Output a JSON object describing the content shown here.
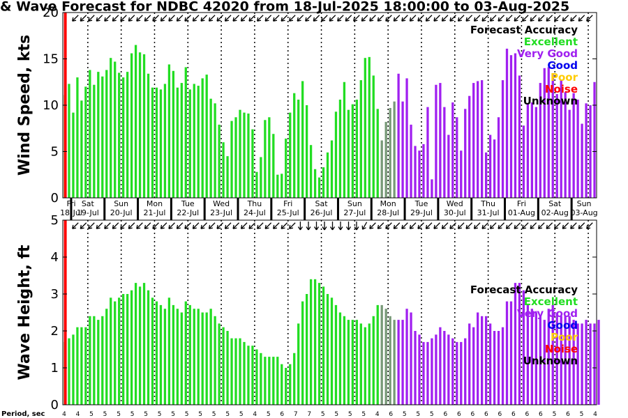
{
  "chart_data": {
    "type": "bar",
    "title": "& Wave Forecast for NDBC 42020 from 18-Jul-2025 18:00:00 to 03-Aug-2025",
    "days": [
      {
        "day": "Fri",
        "date": "18-Jul"
      },
      {
        "day": "Sat",
        "date": "19-Jul"
      },
      {
        "day": "Sun",
        "date": "20-Jul"
      },
      {
        "day": "Mon",
        "date": "21-Jul"
      },
      {
        "day": "Tue",
        "date": "22-Jul"
      },
      {
        "day": "Wed",
        "date": "23-Jul"
      },
      {
        "day": "Thu",
        "date": "24-Jul"
      },
      {
        "day": "Fri",
        "date": "25-Jul"
      },
      {
        "day": "Sat",
        "date": "26-Jul"
      },
      {
        "day": "Sun",
        "date": "27-Jul"
      },
      {
        "day": "Mon",
        "date": "28-Jul"
      },
      {
        "day": "Tue",
        "date": "29-Jul"
      },
      {
        "day": "Wed",
        "date": "30-Jul"
      },
      {
        "day": "Thu",
        "date": "31-Jul"
      },
      {
        "day": "Fri",
        "date": "01-Aug"
      },
      {
        "day": "Sat",
        "date": "02-Aug"
      },
      {
        "day": "Sun",
        "date": "03-Aug"
      }
    ],
    "legend": {
      "title": "Forecast Accuracy",
      "entries": [
        {
          "label": "Excellent",
          "color": "#22dd22"
        },
        {
          "label": "Very Good",
          "color": "#a020f0"
        },
        {
          "label": "Good",
          "color": "#0000ee"
        },
        {
          "label": "Poor",
          "color": "#ffcc00"
        },
        {
          "label": "Noise",
          "color": "#ff0000"
        },
        {
          "label": "Unknown",
          "color": "#000000"
        }
      ],
      "position": "top-right"
    },
    "series_colors": {
      "excellent": "#22dd22",
      "transition": "#779977",
      "very_good": "#a020f0",
      "now_line": "#ff0000"
    },
    "color_blocks": [
      {
        "start": 0,
        "end": 75,
        "class": "excellent"
      },
      {
        "start": 76,
        "end": 79,
        "class": "transition"
      },
      {
        "start": 80,
        "end": 128,
        "class": "very_good"
      }
    ],
    "now_line_hour": 1.8,
    "panels": [
      {
        "ylabel": "Wind Speed, kts",
        "ylim": [
          0,
          20
        ],
        "yticks": [
          0,
          5,
          10,
          15,
          20
        ],
        "values": [
          11.1,
          12.3,
          9.2,
          13.0,
          10.5,
          12.0,
          13.8,
          12.2,
          13.6,
          13.1,
          13.8,
          15.1,
          14.7,
          13.5,
          13.0,
          13.6,
          15.6,
          16.5,
          15.7,
          15.5,
          13.4,
          11.9,
          11.9,
          11.7,
          12.3,
          14.4,
          13.7,
          11.9,
          12.4,
          14.1,
          11.7,
          12.3,
          12.1,
          12.9,
          13.3,
          10.7,
          10.2,
          7.9,
          6.0,
          4.5,
          8.3,
          8.7,
          9.5,
          9.2,
          9.1,
          7.4,
          2.8,
          4.4,
          8.4,
          8.7,
          6.9,
          2.5,
          2.6,
          6.4,
          9.2,
          11.3,
          10.6,
          12.6,
          10.0,
          5.7,
          3.1,
          2.2,
          3.3,
          4.9,
          6.2,
          9.3,
          10.6,
          12.5,
          9.5,
          10.1,
          10.6,
          12.7,
          15.1,
          15.2,
          13.2,
          9.6,
          6.2,
          8.2,
          9.7,
          10.4,
          13.4,
          10.4,
          12.9,
          7.9,
          5.6,
          5.1,
          5.8,
          9.8,
          2.0,
          12.2,
          12.4,
          9.8,
          6.8,
          10.3,
          8.7,
          5.1,
          9.6,
          11.0,
          12.4,
          12.6,
          12.7,
          4.9,
          6.8,
          6.3,
          8.7,
          12.7,
          16.1,
          15.4,
          15.6,
          13.2,
          7.8,
          10.2,
          10.3,
          9.8,
          12.4,
          14.0,
          14.1,
          13.3,
          11.2,
          12.7,
          11.4,
          9.5,
          11.3,
          10.6,
          8.0,
          10.2,
          10.0,
          12.5
        ]
      },
      {
        "ylabel": "Wave Height, ft",
        "ylim": [
          0,
          5
        ],
        "yticks": [
          0,
          1,
          2,
          3,
          4,
          5
        ],
        "values": [
          1.7,
          1.8,
          1.9,
          2.1,
          2.1,
          2.1,
          2.4,
          2.4,
          2.3,
          2.4,
          2.6,
          2.9,
          2.8,
          2.9,
          3.0,
          3.0,
          3.1,
          3.3,
          3.2,
          3.3,
          3.1,
          2.9,
          2.8,
          2.7,
          2.6,
          2.9,
          2.7,
          2.6,
          2.5,
          2.8,
          2.7,
          2.6,
          2.6,
          2.5,
          2.5,
          2.6,
          2.4,
          2.2,
          2.1,
          2.0,
          1.8,
          1.8,
          1.8,
          1.7,
          1.6,
          1.6,
          1.5,
          1.4,
          1.3,
          1.3,
          1.3,
          1.3,
          1.1,
          1.0,
          1.1,
          1.4,
          2.2,
          2.8,
          3.0,
          3.4,
          3.4,
          3.3,
          3.2,
          3.0,
          2.9,
          2.7,
          2.5,
          2.4,
          2.3,
          2.3,
          2.3,
          2.2,
          2.1,
          2.2,
          2.4,
          2.7,
          2.7,
          2.6,
          2.4,
          2.3,
          2.3,
          2.3,
          2.6,
          2.5,
          2.0,
          1.9,
          1.7,
          1.7,
          1.8,
          1.9,
          2.1,
          2.0,
          1.9,
          1.8,
          1.7,
          1.7,
          1.8,
          2.2,
          2.1,
          2.5,
          2.4,
          2.4,
          2.2,
          2.0,
          2.0,
          2.1,
          2.8,
          2.8,
          3.3,
          3.3,
          3.1,
          2.7,
          2.6,
          2.5,
          2.4,
          2.3,
          2.6,
          2.7,
          2.5,
          2.4,
          2.4,
          2.4,
          2.3,
          2.2,
          2.2,
          2.3,
          2.2,
          2.2,
          2.3
        ]
      }
    ],
    "direction_arrows": [
      {
        "panel": 0,
        "angles": [
          135,
          135,
          135,
          135,
          135,
          135,
          135,
          135,
          135,
          135,
          135,
          135,
          135,
          135,
          135,
          135,
          135,
          135,
          135,
          135,
          135,
          135,
          135,
          135,
          135,
          135,
          135,
          135,
          135,
          135,
          135,
          135,
          135,
          135,
          135,
          135,
          135,
          135,
          135,
          135,
          135,
          135,
          135,
          135,
          135,
          135,
          135,
          135,
          135,
          135,
          135,
          135,
          135,
          135,
          135,
          135,
          135,
          135,
          135,
          135,
          135,
          135,
          135,
          135,
          135
        ]
      },
      {
        "panel": 1,
        "angles": [
          135,
          135,
          135,
          135,
          135,
          135,
          135,
          135,
          135,
          135,
          135,
          135,
          135,
          135,
          135,
          135,
          135,
          135,
          135,
          135,
          135,
          135,
          135,
          135,
          135,
          135,
          135,
          135,
          90,
          90,
          90,
          90,
          90,
          90,
          90,
          90,
          120,
          135,
          135,
          135,
          135,
          135,
          135,
          135,
          135,
          135,
          135,
          135,
          135,
          135,
          135,
          135,
          135,
          135,
          135,
          135,
          135,
          135,
          135,
          135,
          135,
          135,
          135,
          135,
          135
        ]
      }
    ],
    "period_label": "Period, sec",
    "periods": [
      "4",
      "4",
      "5",
      "5",
      "5",
      "5",
      "5",
      "5",
      "5",
      "5",
      "5",
      "5",
      "5",
      "5",
      "4",
      "5",
      "6",
      "7",
      "7",
      "5",
      "5",
      "5",
      "5",
      "4",
      "6",
      "5",
      "5",
      "5",
      "6",
      "6",
      "6",
      "6",
      "6",
      "6",
      "6",
      "6",
      "5",
      "6",
      "5",
      "4"
    ]
  }
}
